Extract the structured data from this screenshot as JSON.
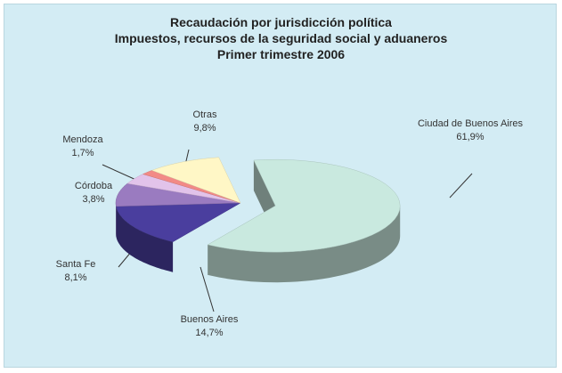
{
  "chart_data": {
    "type": "pie",
    "title": "Recaudación por jurisdicción política",
    "subtitle": "Impuestos, recursos de la seguridad social y aduaneros",
    "period": "Primer trimestre 2006",
    "categories": [
      "Ciudad de Buenos Aires",
      "Buenos Aires",
      "Santa Fe",
      "Córdoba",
      "Mendoza",
      "Otras"
    ],
    "values": [
      61.9,
      14.7,
      8.1,
      3.8,
      1.7,
      9.8
    ],
    "value_labels": [
      "61,9%",
      "14,7%",
      "8,1%",
      "3,8%",
      "1,7%",
      "9,8%"
    ],
    "colors": [
      "#c9e9df",
      "#4a3e9e",
      "#9a7bc0",
      "#e2c3ea",
      "#f28a86",
      "#fff7c6"
    ]
  }
}
